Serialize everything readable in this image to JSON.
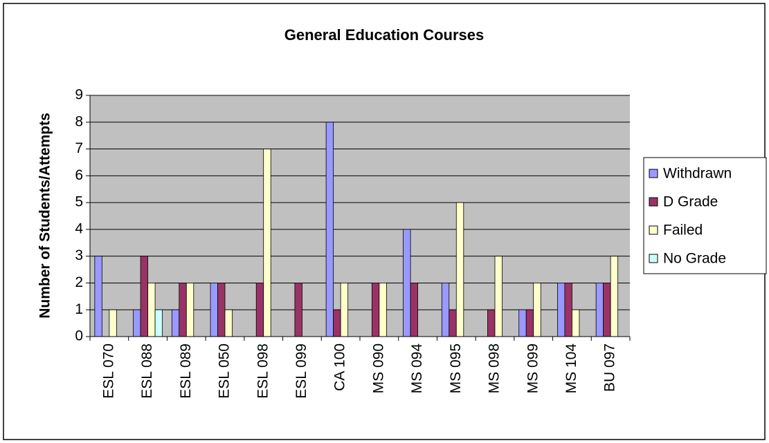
{
  "chart_data": {
    "type": "bar",
    "title": "General Education Courses",
    "y_label": "Number of Students/Attempts",
    "categories": [
      "ESL 070",
      "ESL 088",
      "ESL 089",
      "ESL 050",
      "ESL 098",
      "ESL 099",
      "CA 100",
      "MS 090",
      "MS 094",
      "MS 095",
      "MS 098",
      "MS 099",
      "MS 104",
      "BU 097"
    ],
    "series": [
      {
        "name": "Withdrawn",
        "color": "#9999ff",
        "values": [
          3,
          1,
          1,
          2,
          0,
          0,
          8,
          0,
          4,
          2,
          0,
          1,
          2,
          2
        ]
      },
      {
        "name": "D Grade",
        "color": "#993366",
        "values": [
          0,
          3,
          2,
          2,
          2,
          2,
          1,
          2,
          2,
          1,
          1,
          1,
          2,
          2
        ]
      },
      {
        "name": "Failed",
        "color": "#ffffcc",
        "values": [
          1,
          2,
          2,
          1,
          7,
          0,
          2,
          2,
          0,
          5,
          3,
          2,
          1,
          3
        ]
      },
      {
        "name": "No Grade",
        "color": "#ccffff",
        "values": [
          0,
          1,
          0,
          0,
          0,
          0,
          0,
          0,
          0,
          0,
          0,
          0,
          0,
          0
        ]
      }
    ],
    "ylim": [
      0,
      9
    ],
    "yticks": [
      0,
      1,
      2,
      3,
      4,
      5,
      6,
      7,
      8,
      9
    ],
    "grid": true,
    "legend": "right"
  }
}
